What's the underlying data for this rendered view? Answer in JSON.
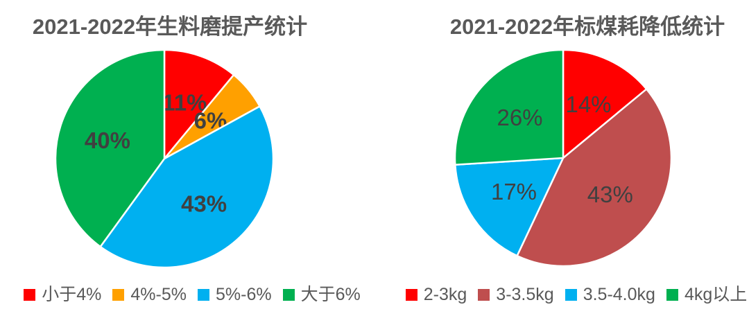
{
  "chart_data": [
    {
      "type": "pie",
      "title": "2021-2022年生料磨提产统计",
      "categories": [
        "小于4%",
        "4%-5%",
        "5%-6%",
        "大于6%"
      ],
      "values": [
        11,
        6,
        43,
        40
      ],
      "slice_labels": [
        "11%",
        "6%",
        "43%",
        "40%"
      ],
      "colors": [
        "#FF0000",
        "#FFA000",
        "#00B0F0",
        "#00B050"
      ],
      "start_angle_deg": 0,
      "direction": "clockwise",
      "legend_position": "bottom",
      "label_style": "bold",
      "title_color": "#595959",
      "label_color": "#404040",
      "slice_border_color": "#FFFFFF"
    },
    {
      "type": "pie",
      "title": "2021-2022年标煤耗降低统计",
      "categories": [
        "2-3kg",
        "3-3.5kg",
        "3.5-4.0kg",
        "4kg以上"
      ],
      "values": [
        14,
        43,
        17,
        26
      ],
      "slice_labels": [
        "14%",
        "43%",
        "17%",
        "26%"
      ],
      "colors": [
        "#FF0000",
        "#BF4E4E",
        "#00B0F0",
        "#00B050"
      ],
      "start_angle_deg": 0,
      "direction": "clockwise",
      "legend_position": "bottom",
      "label_style": "normal",
      "title_color": "#595959",
      "label_color": "#404040",
      "slice_border_color": "#FFFFFF"
    }
  ]
}
